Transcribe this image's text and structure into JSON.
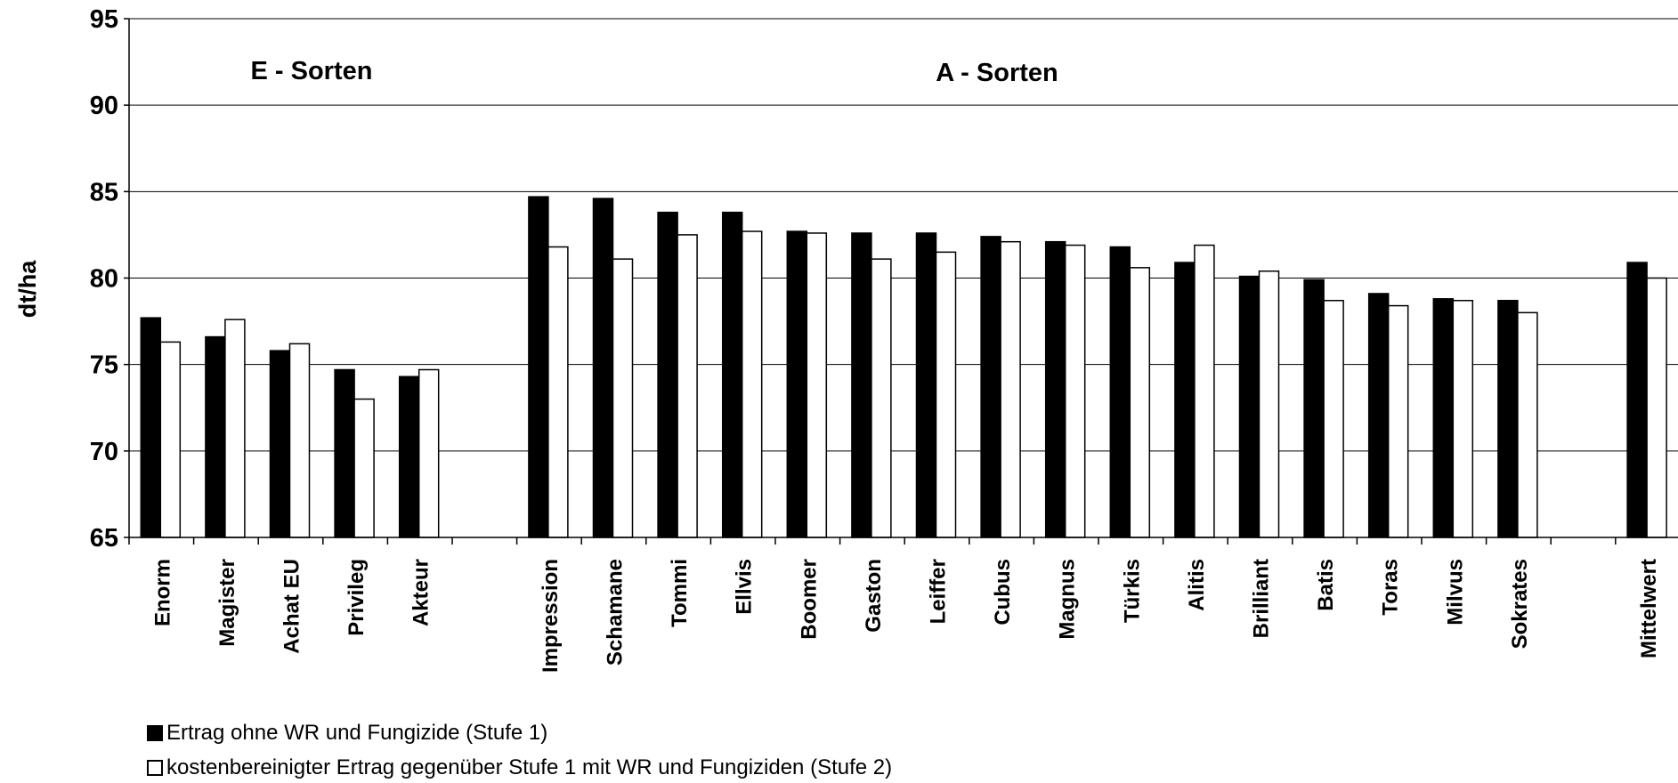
{
  "chart_data": {
    "type": "bar",
    "ylabel": "dt/ha",
    "ylim": [
      65,
      95
    ],
    "yticks": [
      65,
      70,
      75,
      80,
      85,
      90,
      95
    ],
    "grid": true,
    "legend_placement": "bottom-left",
    "group_labels": [
      "E - Sorten",
      "A - Sorten"
    ],
    "categories": [
      "Enorm",
      "Magister",
      "Achat EU",
      "Privileg",
      "Akteur",
      "Impression",
      "Schamane",
      "Tommi",
      "Ellvis",
      "Boomer",
      "Gaston",
      "Leiffer",
      "Cubus",
      "Magnus",
      "Türkis",
      "Alitis",
      "Brilliant",
      "Batis",
      "Toras",
      "Milvus",
      "Sokrates",
      "Mittelwert"
    ],
    "series": [
      {
        "name": "Ertrag ohne WR und Fungizide (Stufe 1)",
        "color": "#000000",
        "values": [
          77.7,
          76.6,
          75.8,
          74.7,
          74.3,
          84.7,
          84.6,
          83.8,
          83.8,
          82.7,
          82.6,
          82.6,
          82.4,
          82.1,
          81.8,
          80.9,
          80.1,
          79.9,
          79.1,
          78.8,
          78.7,
          80.9
        ]
      },
      {
        "name": "kostenbereinigter Ertrag gegenüber Stufe 1 mit WR und Fungiziden (Stufe 2)",
        "color": "#ffffff",
        "values": [
          76.3,
          77.6,
          76.2,
          73.0,
          74.7,
          81.8,
          81.1,
          82.5,
          82.7,
          82.6,
          81.1,
          81.5,
          82.1,
          81.9,
          80.6,
          81.9,
          80.4,
          78.7,
          78.4,
          78.7,
          78.0,
          80.0
        ]
      }
    ]
  }
}
